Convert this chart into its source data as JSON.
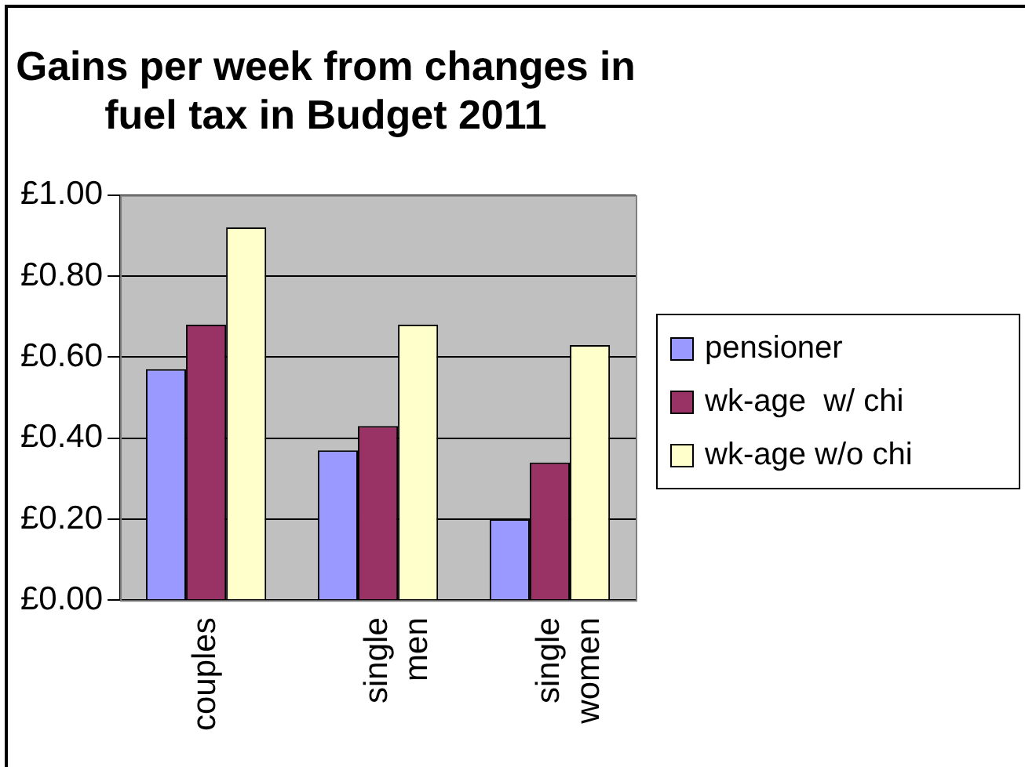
{
  "chart_data": {
    "type": "bar",
    "title": "Gains per week from changes in fuel tax in Budget 2011",
    "categories": [
      "couples",
      "single men",
      "single women"
    ],
    "series": [
      {
        "name": "pensioner",
        "color": "#9999ff",
        "values": [
          0.57,
          0.37,
          0.2
        ]
      },
      {
        "name": "wk-age  w/ chi",
        "color": "#993366",
        "values": [
          0.68,
          0.43,
          0.34
        ]
      },
      {
        "name": "wk-age w/o chi",
        "color": "#ffffcc",
        "values": [
          0.92,
          0.68,
          0.63
        ]
      }
    ],
    "ylim": [
      0,
      1
    ],
    "yticks": [
      {
        "value": 0,
        "label": "£0.00"
      },
      {
        "value": 0.2,
        "label": "£0.20"
      },
      {
        "value": 0.4,
        "label": "£0.40"
      },
      {
        "value": 0.6,
        "label": "£0.60"
      },
      {
        "value": 0.8,
        "label": "£0.80"
      },
      {
        "value": 1,
        "label": "£1.00"
      }
    ],
    "grid": "y",
    "legend": "right"
  }
}
